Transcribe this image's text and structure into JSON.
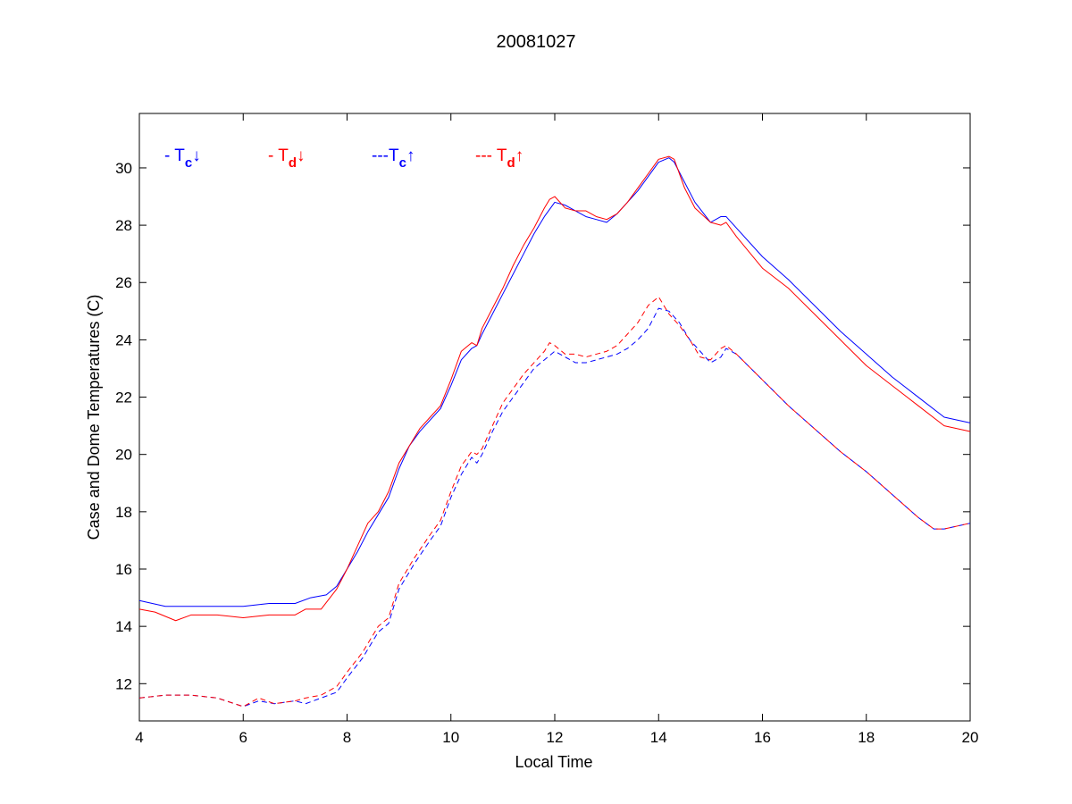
{
  "chart_data": {
    "type": "line",
    "title": "20081027",
    "xlabel": "Local Time",
    "ylabel": "Case and Dome Temperatures (C)",
    "xlim": [
      4,
      20
    ],
    "ylim": [
      10.7,
      31.9
    ],
    "xticks": [
      4,
      6,
      8,
      10,
      12,
      14,
      16,
      18,
      20
    ],
    "yticks": [
      12,
      14,
      16,
      18,
      20,
      22,
      24,
      26,
      28,
      30
    ],
    "grid": false,
    "legend_position": "top-left",
    "series": [
      {
        "key": "tc_down",
        "name": "- Tc↓",
        "legend_text": "- T",
        "legend_sub": "c",
        "legend_arrow": "↓",
        "color": "#0000ff",
        "dash": "solid",
        "x": [
          4,
          4.5,
          5,
          5.5,
          6,
          6.5,
          7,
          7.3,
          7.6,
          7.8,
          8,
          8.2,
          8.4,
          8.6,
          8.8,
          9,
          9.2,
          9.4,
          9.6,
          9.8,
          10,
          10.2,
          10.4,
          10.5,
          10.6,
          10.8,
          11,
          11.2,
          11.4,
          11.6,
          11.8,
          12,
          12.2,
          12.4,
          12.6,
          12.8,
          13,
          13.2,
          13.4,
          13.6,
          13.8,
          14,
          14.2,
          14.3,
          14.5,
          14.7,
          15,
          15.2,
          15.3,
          15.5,
          16,
          16.5,
          17,
          17.5,
          18,
          18.5,
          19,
          19.5,
          20
        ],
        "y": [
          14.9,
          14.7,
          14.7,
          14.7,
          14.7,
          14.8,
          14.8,
          15.0,
          15.1,
          15.4,
          16.0,
          16.6,
          17.3,
          17.9,
          18.5,
          19.5,
          20.3,
          20.8,
          21.2,
          21.6,
          22.4,
          23.3,
          23.7,
          23.8,
          24.2,
          24.9,
          25.6,
          26.3,
          27.0,
          27.7,
          28.3,
          28.8,
          28.7,
          28.5,
          28.3,
          28.2,
          28.1,
          28.4,
          28.8,
          29.2,
          29.7,
          30.2,
          30.35,
          30.2,
          29.5,
          28.8,
          28.1,
          28.3,
          28.3,
          27.9,
          26.9,
          26.1,
          25.2,
          24.3,
          23.5,
          22.7,
          22.0,
          21.3,
          21.1
        ]
      },
      {
        "key": "td_down",
        "name": "- Td↓",
        "legend_text": "- T",
        "legend_sub": "d",
        "legend_arrow": "↓",
        "color": "#ff0000",
        "dash": "solid",
        "x": [
          4,
          4.3,
          4.7,
          5,
          5.5,
          6,
          6.5,
          7,
          7.2,
          7.5,
          7.8,
          8,
          8.2,
          8.4,
          8.6,
          8.8,
          9,
          9.2,
          9.4,
          9.6,
          9.8,
          10,
          10.2,
          10.4,
          10.5,
          10.6,
          10.8,
          11,
          11.2,
          11.4,
          11.6,
          11.8,
          11.9,
          12,
          12.2,
          12.4,
          12.6,
          12.8,
          13,
          13.2,
          13.4,
          13.6,
          13.8,
          14,
          14.2,
          14.3,
          14.5,
          14.7,
          15,
          15.2,
          15.3,
          15.5,
          16,
          16.5,
          17,
          17.5,
          18,
          18.5,
          19,
          19.5,
          20
        ],
        "y": [
          14.6,
          14.5,
          14.2,
          14.4,
          14.4,
          14.3,
          14.4,
          14.4,
          14.6,
          14.6,
          15.3,
          16.0,
          16.8,
          17.6,
          18.0,
          18.7,
          19.7,
          20.3,
          20.9,
          21.3,
          21.7,
          22.6,
          23.6,
          23.9,
          23.8,
          24.4,
          25.1,
          25.8,
          26.6,
          27.3,
          27.9,
          28.6,
          28.9,
          29.0,
          28.6,
          28.5,
          28.5,
          28.3,
          28.2,
          28.4,
          28.8,
          29.3,
          29.8,
          30.3,
          30.4,
          30.3,
          29.3,
          28.6,
          28.1,
          28.0,
          28.1,
          27.6,
          26.5,
          25.8,
          24.9,
          24.0,
          23.1,
          22.4,
          21.7,
          21.0,
          20.8
        ]
      },
      {
        "key": "tc_up",
        "name": "---Tc↑",
        "legend_text": "---T",
        "legend_sub": "c",
        "legend_arrow": "↑",
        "color": "#0000ff",
        "dash": "dashed",
        "x": [
          4,
          4.5,
          5,
          5.5,
          6,
          6.3,
          6.6,
          7,
          7.2,
          7.5,
          7.8,
          8,
          8.3,
          8.6,
          8.8,
          9,
          9.3,
          9.6,
          9.8,
          10,
          10.2,
          10.4,
          10.5,
          10.6,
          10.8,
          11,
          11.2,
          11.4,
          11.6,
          11.8,
          12,
          12.2,
          12.4,
          12.6,
          12.8,
          13,
          13.2,
          13.4,
          13.6,
          13.8,
          14,
          14.2,
          14.4,
          14.6,
          14.8,
          15,
          15.2,
          15.3,
          15.5,
          16,
          16.5,
          17,
          17.5,
          18,
          18.5,
          19,
          19.3,
          19.5,
          20
        ],
        "y": [
          11.5,
          11.6,
          11.6,
          11.5,
          11.2,
          11.4,
          11.3,
          11.4,
          11.3,
          11.5,
          11.7,
          12.2,
          12.9,
          13.8,
          14.1,
          15.3,
          16.2,
          17.0,
          17.5,
          18.5,
          19.3,
          19.9,
          19.7,
          20.0,
          20.8,
          21.5,
          22.0,
          22.5,
          23.0,
          23.3,
          23.6,
          23.4,
          23.2,
          23.2,
          23.3,
          23.4,
          23.5,
          23.7,
          24.0,
          24.4,
          25.1,
          25.0,
          24.6,
          24.0,
          23.6,
          23.2,
          23.4,
          23.7,
          23.5,
          22.6,
          21.7,
          20.9,
          20.1,
          19.4,
          18.6,
          17.8,
          17.4,
          17.4,
          17.6
        ]
      },
      {
        "key": "td_up",
        "name": "--- Td↑",
        "legend_text": "--- T",
        "legend_sub": "d",
        "legend_arrow": "↑",
        "color": "#ff0000",
        "dash": "dashed",
        "x": [
          4,
          4.5,
          5,
          5.5,
          6,
          6.3,
          6.6,
          7,
          7.2,
          7.5,
          7.8,
          8,
          8.3,
          8.6,
          8.8,
          9,
          9.3,
          9.6,
          9.8,
          10,
          10.2,
          10.4,
          10.5,
          10.6,
          10.8,
          11,
          11.2,
          11.4,
          11.6,
          11.8,
          11.9,
          12,
          12.2,
          12.4,
          12.6,
          12.8,
          13,
          13.2,
          13.4,
          13.6,
          13.8,
          14,
          14.2,
          14.4,
          14.6,
          14.8,
          15,
          15.2,
          15.3,
          15.5,
          16,
          16.5,
          17,
          17.5,
          18,
          18.5,
          19,
          19.3,
          19.5,
          20
        ],
        "y": [
          11.5,
          11.6,
          11.6,
          11.5,
          11.2,
          11.5,
          11.3,
          11.4,
          11.5,
          11.6,
          11.9,
          12.4,
          13.1,
          14.0,
          14.3,
          15.5,
          16.4,
          17.2,
          17.7,
          18.7,
          19.6,
          20.1,
          20.0,
          20.2,
          21.0,
          21.8,
          22.3,
          22.8,
          23.2,
          23.6,
          23.9,
          23.8,
          23.5,
          23.5,
          23.4,
          23.5,
          23.6,
          23.8,
          24.2,
          24.6,
          25.2,
          25.5,
          24.9,
          24.5,
          24.0,
          23.4,
          23.3,
          23.7,
          23.8,
          23.5,
          22.6,
          21.7,
          20.9,
          20.1,
          19.4,
          18.6,
          17.8,
          17.4,
          17.4,
          17.6
        ]
      }
    ]
  }
}
